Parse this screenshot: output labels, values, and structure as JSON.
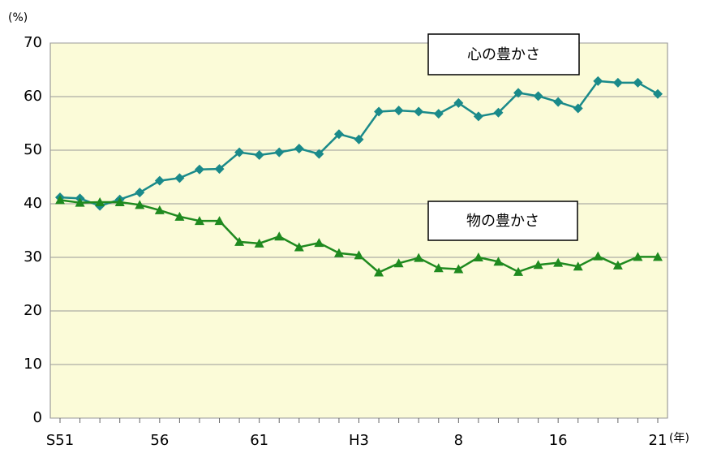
{
  "chart_data": {
    "type": "line",
    "unit_label": "(%)",
    "x_unit_label": "(年)",
    "categories": [
      "S51",
      null,
      null,
      null,
      null,
      "56",
      null,
      null,
      null,
      null,
      "61",
      null,
      null,
      null,
      null,
      "H3",
      null,
      null,
      null,
      null,
      "8",
      null,
      null,
      null,
      null,
      "16",
      null,
      null,
      null,
      null,
      "21"
    ],
    "series": [
      {
        "name": "心の豊かさ",
        "color": "#1a8a8a",
        "marker": "diamond",
        "values": [
          41.2,
          41.0,
          39.6,
          40.8,
          42.1,
          44.3,
          44.8,
          46.4,
          46.5,
          49.6,
          49.1,
          49.6,
          50.3,
          49.3,
          53.0,
          52.0,
          57.2,
          57.4,
          57.2,
          56.8,
          58.8,
          56.3,
          57.0,
          60.7,
          60.1,
          59.0,
          57.8,
          62.9,
          62.6,
          62.6,
          60.5
        ]
      },
      {
        "name": "物の豊かさ",
        "color": "#1f8a1f",
        "marker": "triangle",
        "values": [
          40.7,
          40.2,
          40.3,
          40.3,
          39.8,
          38.8,
          37.6,
          36.8,
          36.8,
          32.9,
          32.6,
          33.9,
          31.9,
          32.7,
          30.8,
          30.4,
          27.2,
          28.9,
          29.9,
          28.0,
          27.8,
          30.0,
          29.2,
          27.3,
          28.6,
          29.0,
          28.3,
          30.2,
          28.5,
          30.1,
          30.1
        ]
      }
    ],
    "ylim": [
      0,
      70
    ],
    "yticks": [
      0,
      10,
      20,
      30,
      40,
      50,
      60,
      70
    ],
    "grid": true
  }
}
